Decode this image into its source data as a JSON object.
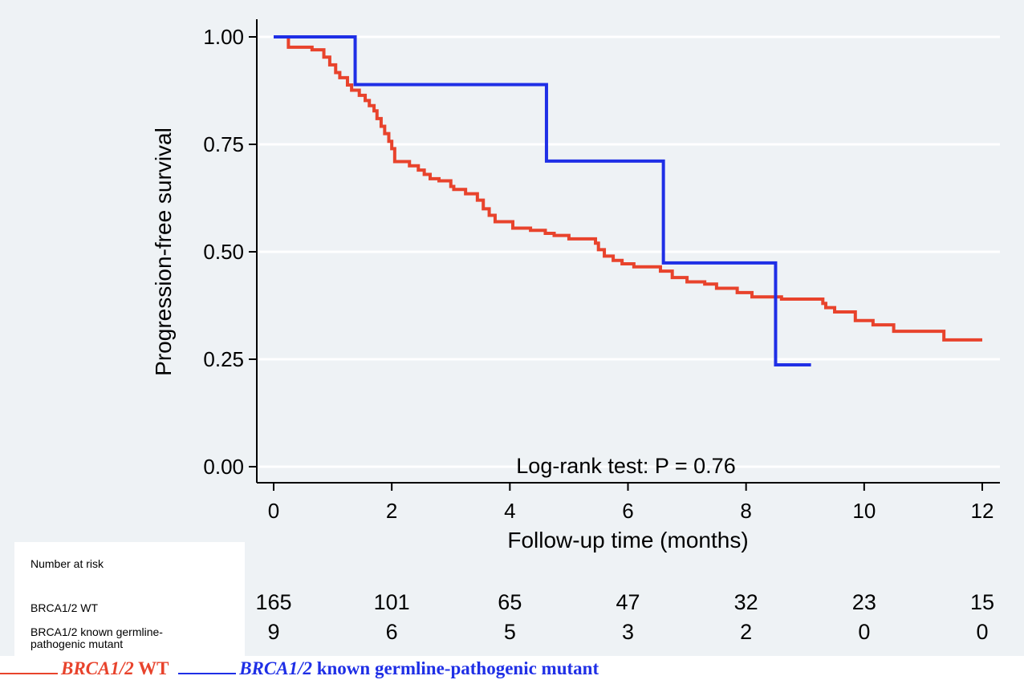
{
  "chart_data": {
    "type": "line",
    "ylabel": "Progression-free survival",
    "xlabel": "Follow-up time (months)",
    "xlim": [
      0,
      12
    ],
    "ylim": [
      0,
      1
    ],
    "x_ticks": [
      0,
      2,
      4,
      6,
      8,
      10,
      12
    ],
    "y_ticks": [
      0.0,
      0.25,
      0.5,
      0.75,
      1.0
    ],
    "x_tick_labels": [
      "0",
      "2",
      "4",
      "6",
      "8",
      "10",
      "12"
    ],
    "y_tick_labels": [
      "0.00",
      "0.25",
      "0.50",
      "0.75",
      "1.00"
    ],
    "grid": true,
    "annotation": "Log-rank test: P = 0.76",
    "colors": {
      "wt": "#e8432c",
      "mutant": "#1f2fe6",
      "background": "#eef2f5",
      "grid": "#ffffff"
    },
    "series": [
      {
        "key": "wt",
        "color": "#e8432c",
        "x": [
          0,
          0.25,
          0.45,
          0.65,
          0.85,
          0.95,
          1.05,
          1.12,
          1.25,
          1.32,
          1.45,
          1.55,
          1.62,
          1.7,
          1.75,
          1.82,
          1.88,
          1.95,
          2.0,
          2.05,
          2.12,
          2.3,
          2.45,
          2.55,
          2.65,
          2.8,
          3.0,
          3.05,
          3.25,
          3.45,
          3.55,
          3.65,
          3.75,
          3.85,
          4.05,
          4.35,
          4.6,
          4.75,
          5.0,
          5.45,
          5.5,
          5.6,
          5.75,
          5.9,
          6.1,
          6.55,
          6.75,
          7.0,
          7.3,
          7.5,
          7.85,
          8.1,
          8.6,
          8.9,
          9.3,
          9.35,
          9.5,
          9.85,
          10.15,
          10.5,
          11.35,
          12.0
        ],
        "y": [
          1.0,
          0.976,
          0.976,
          0.97,
          0.953,
          0.935,
          0.917,
          0.905,
          0.888,
          0.876,
          0.864,
          0.852,
          0.84,
          0.828,
          0.81,
          0.792,
          0.775,
          0.757,
          0.74,
          0.71,
          0.71,
          0.7,
          0.69,
          0.68,
          0.67,
          0.665,
          0.652,
          0.645,
          0.635,
          0.62,
          0.6,
          0.585,
          0.57,
          0.57,
          0.555,
          0.55,
          0.543,
          0.538,
          0.53,
          0.52,
          0.505,
          0.49,
          0.48,
          0.472,
          0.465,
          0.455,
          0.44,
          0.43,
          0.425,
          0.415,
          0.405,
          0.395,
          0.39,
          0.39,
          0.38,
          0.37,
          0.36,
          0.34,
          0.33,
          0.315,
          0.295,
          0.295
        ]
      },
      {
        "key": "mutant",
        "color": "#1f2fe6",
        "x": [
          0,
          1.38,
          4.62,
          6.6,
          8.5,
          9.1
        ],
        "y": [
          1.0,
          0.889,
          0.711,
          0.474,
          0.237,
          0.237
        ]
      }
    ],
    "risk_table": {
      "title": "Number at risk",
      "times": [
        0,
        2,
        4,
        6,
        8,
        10,
        12
      ],
      "rows": [
        {
          "label": "BRCA1/2 WT",
          "values": [
            "165",
            "101",
            "65",
            "47",
            "32",
            "23",
            "15"
          ]
        },
        {
          "label": "BRCA1/2 known germline-pathogenic mutant",
          "values": [
            "9",
            "6",
            "5",
            "3",
            "2",
            "0",
            "0"
          ]
        }
      ]
    }
  },
  "legend": [
    {
      "gene": "BRCA1/2",
      "rest": " WT",
      "color": "#e8432c"
    },
    {
      "gene": "BRCA1/2",
      "rest": " known germline-pathogenic mutant",
      "color": "#1f2fe6"
    }
  ]
}
